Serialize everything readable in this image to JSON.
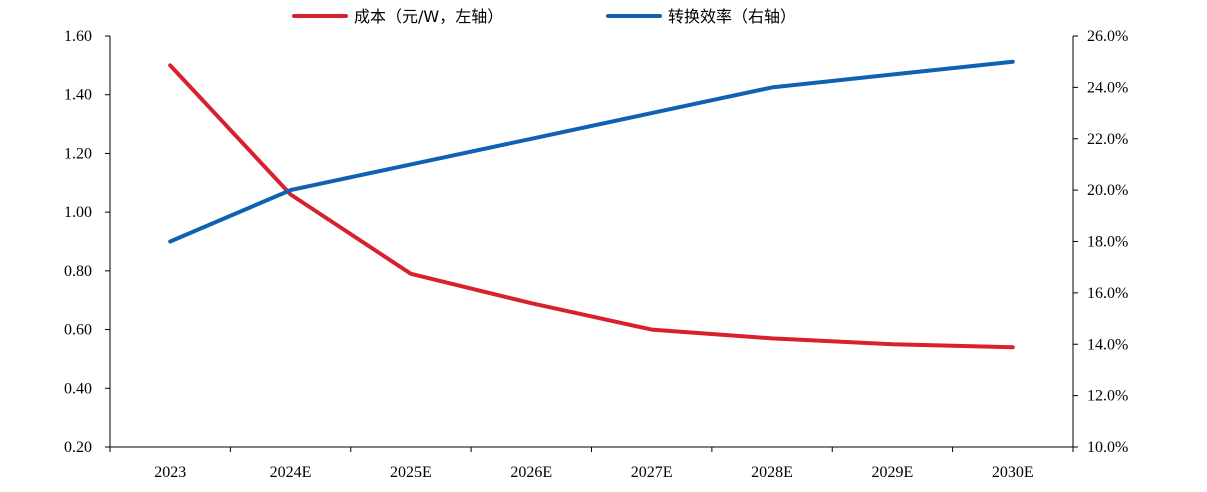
{
  "chart_data": {
    "type": "line",
    "categories": [
      "2023",
      "2024E",
      "2025E",
      "2026E",
      "2027E",
      "2028E",
      "2029E",
      "2030E"
    ],
    "series": [
      {
        "name": "成本（元/W，左轴）",
        "axis": "left",
        "color": "#d7212d",
        "values": [
          1.5,
          1.06,
          0.79,
          0.69,
          0.6,
          0.57,
          0.55,
          0.54
        ]
      },
      {
        "name": "转换效率（右轴）",
        "axis": "right",
        "color": "#0f62b3",
        "values": [
          0.18,
          0.2,
          0.21,
          0.22,
          0.23,
          0.24,
          0.245,
          0.25
        ]
      }
    ],
    "y_left": {
      "range": [
        0.2,
        1.6
      ],
      "ticks": [
        "0.20",
        "0.40",
        "0.60",
        "0.80",
        "1.00",
        "1.20",
        "1.40",
        "1.60"
      ]
    },
    "y_right": {
      "range": [
        0.1,
        0.26
      ],
      "ticks": [
        "10.0%",
        "12.0%",
        "14.0%",
        "16.0%",
        "18.0%",
        "20.0%",
        "22.0%",
        "24.0%",
        "26.0%"
      ]
    },
    "grid": false,
    "legend_position": "top-center"
  }
}
